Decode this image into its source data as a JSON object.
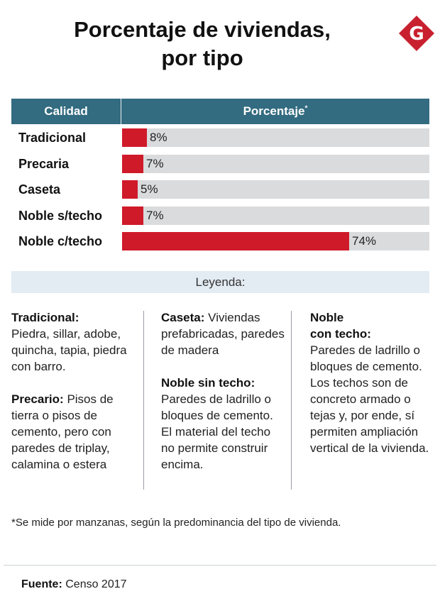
{
  "title_line1": "Porcentaje de viviendas,",
  "title_line2": "por tipo",
  "logo_letter": "G",
  "colors": {
    "header_bg": "#336b80",
    "bar": "#cf1a2a",
    "track": "#d9dbdd",
    "legend_bg": "#e3ebf3",
    "logo": "#c8202f"
  },
  "table": {
    "col_calidad": "Calidad",
    "col_porcentaje": "Porcentaje",
    "col_porcentaje_mark": "*"
  },
  "chart_data": {
    "type": "bar",
    "orientation": "horizontal",
    "categories": [
      "Tradicional",
      "Precaria",
      "Caseta",
      "Noble s/techo",
      "Noble c/techo"
    ],
    "values": [
      8,
      7,
      5,
      7,
      74
    ],
    "value_labels": [
      "8%",
      "7%",
      "5%",
      "7%",
      "74%"
    ],
    "xlim": [
      0,
      100
    ]
  },
  "legend": {
    "header": "Leyenda:",
    "tradicional_term": "Tradicional:",
    "tradicional_desc": "Piedra, sillar, adobe, quincha, tapia, piedra con barro.",
    "precario_term": "Precario:",
    "precario_desc": "Pisos de tierra o pisos de cemento, pero con paredes de triplay, calamina o estera",
    "caseta_term": "Caseta:",
    "caseta_desc": "Viviendas prefabricadas, paredes de madera",
    "noble_sin_term": "Noble sin techo:",
    "noble_sin_desc": "Paredes de ladrillo o bloques de cemento. El material del techo no permite construir encima.",
    "noble_con_term_1": "Noble",
    "noble_con_term_2": "con techo:",
    "noble_con_desc": "Paredes de ladrillo o bloques de cemento. Los techos son de concreto armado o tejas y, por ende, sí permiten ampliación vertical de la vivienda."
  },
  "footnote": "*Se mide por manzanas, según la predominancia del tipo de vivienda.",
  "source": {
    "label": "Fuente:",
    "value": "Censo 2017"
  }
}
